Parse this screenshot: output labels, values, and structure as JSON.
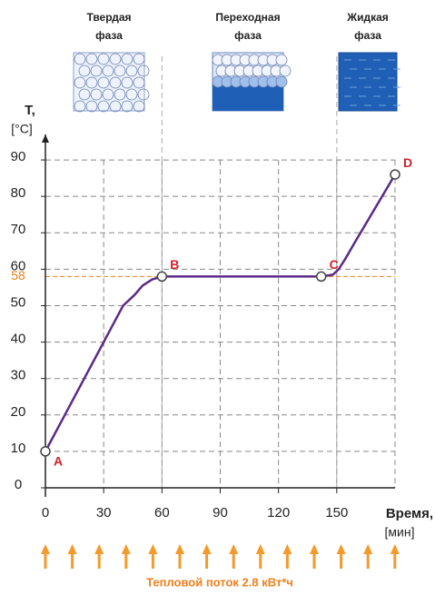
{
  "chart_data": {
    "type": "line",
    "y_label": "T,",
    "y_unit": "[°C]",
    "x_label": "Время,",
    "x_unit": "[мин]",
    "footer": "Тепловой поток 2.8 кВт*ч",
    "phases": [
      [
        "Твердая",
        "фаза"
      ],
      [
        "Переходная",
        "фаза"
      ],
      [
        "Жидкая",
        "фаза"
      ]
    ],
    "phase_bounds": [
      60,
      150
    ],
    "xlim": [
      0,
      180
    ],
    "ylim": [
      0,
      97
    ],
    "xticks": [
      0,
      30,
      60,
      90,
      120,
      150
    ],
    "yticks": [
      0,
      10,
      20,
      30,
      40,
      50,
      60,
      70,
      80,
      90
    ],
    "grid": true,
    "highlight_y": 58,
    "highlight_color": "#f07f1a",
    "line": {
      "color": "#5b2a86",
      "x": [
        0,
        10,
        20,
        30,
        40,
        46,
        50,
        55,
        60,
        100,
        142,
        148,
        151,
        154,
        160,
        170,
        180
      ],
      "y": [
        10,
        20,
        30,
        40,
        50,
        53,
        55.5,
        57.2,
        58,
        58,
        58,
        58.5,
        60,
        62.5,
        68,
        77,
        86
      ]
    },
    "points": [
      {
        "label": "A",
        "x": 0,
        "y": 10
      },
      {
        "label": "B",
        "x": 60,
        "y": 58
      },
      {
        "label": "C",
        "x": 142,
        "y": 58
      },
      {
        "label": "D",
        "x": 180,
        "y": 86
      }
    ],
    "point_label_color": "#d4202a"
  }
}
